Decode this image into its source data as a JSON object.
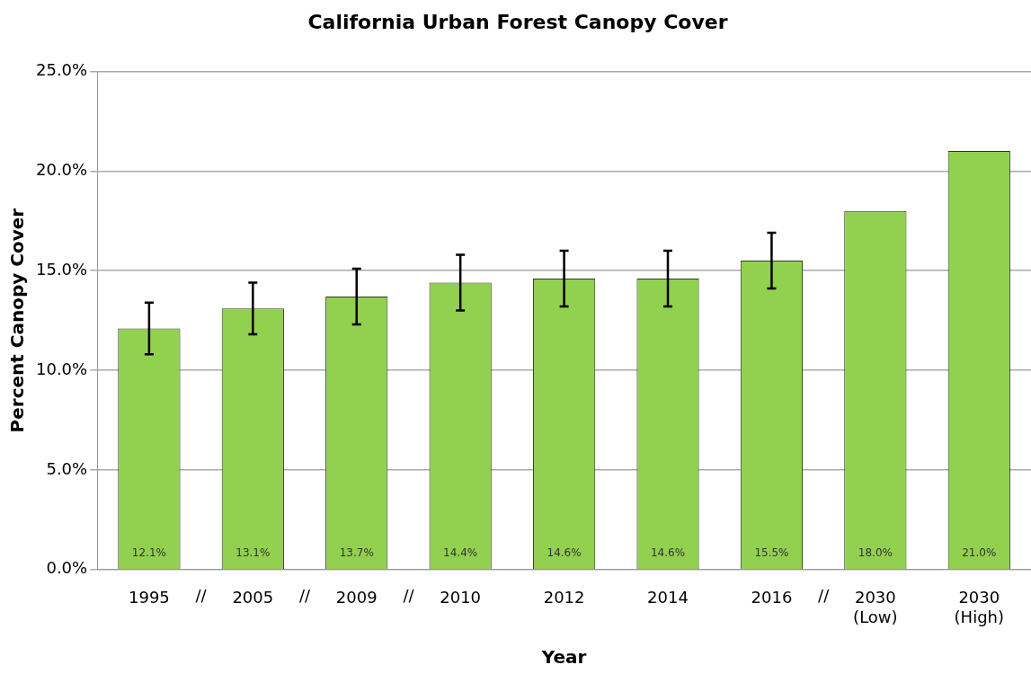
{
  "chart_data": {
    "type": "bar",
    "title": "California Urban Forest Canopy Cover",
    "xlabel": "Year",
    "ylabel": "Percent Canopy Cover",
    "categories": [
      "1995",
      "2005",
      "2009",
      "2010",
      "2012",
      "2014",
      "2016",
      "2030\n(Low)",
      "2030\n(High)"
    ],
    "values": [
      12.1,
      13.1,
      13.7,
      14.4,
      14.6,
      14.6,
      15.5,
      18.0,
      21.0
    ],
    "errors": [
      1.3,
      1.3,
      1.4,
      1.4,
      1.4,
      1.4,
      1.4,
      null,
      null
    ],
    "value_labels": [
      "12.1%",
      "13.1%",
      "13.7%",
      "14.4%",
      "14.6%",
      "14.6%",
      "15.5%",
      "18.0%",
      "21.0%"
    ],
    "color": "#92d050",
    "ylim": [
      0,
      25
    ],
    "yticks": [
      {
        "value": 0,
        "label": "0.0%"
      },
      {
        "value": 5,
        "label": "5.0%"
      },
      {
        "value": 10,
        "label": "10.0%"
      },
      {
        "value": 15,
        "label": "15.0%"
      },
      {
        "value": 20,
        "label": "20.0%"
      },
      {
        "value": 25,
        "label": "25.0%"
      }
    ],
    "grid": "y",
    "legend": false,
    "annotations": [
      "//",
      "//",
      "//",
      "//"
    ]
  }
}
